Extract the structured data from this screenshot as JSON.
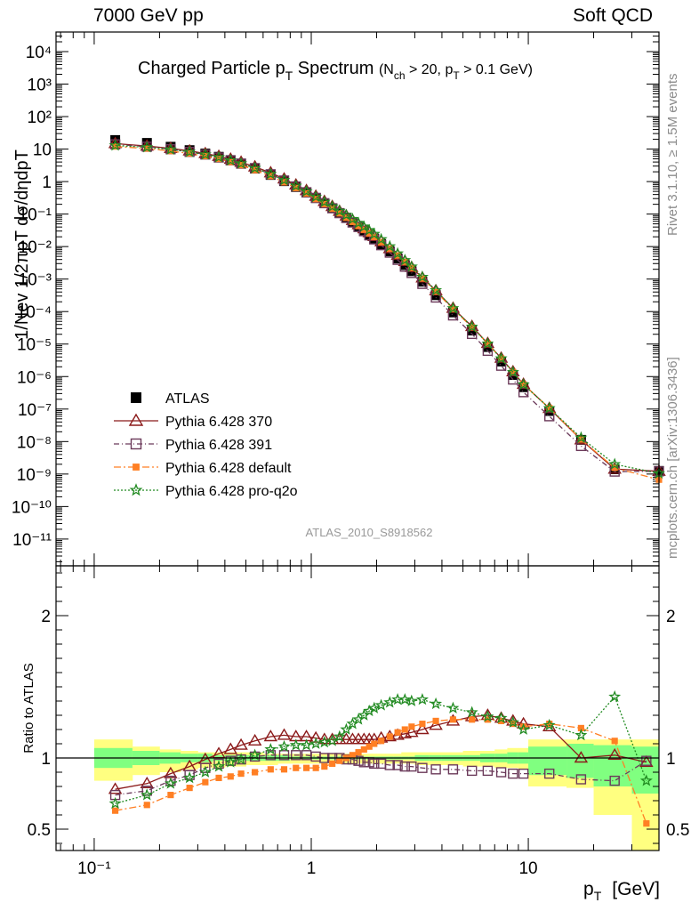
{
  "header": {
    "left": "7000 GeV pp",
    "right": "Soft QCD"
  },
  "side_labels": {
    "rivet": "Rivet 3.1.10, ≥ 1.5M events",
    "mcplots": "mcplots.cern.ch [arXiv:1306.3436]"
  },
  "chart_data": [
    {
      "type": "scatter",
      "title": "Charged Particle pT Spectrum (Nch > 20, pT > 0.1 GeV)",
      "title_main": "Charged Particle p",
      "title_sub": "T",
      "title_after": " Spectrum",
      "title_cond": "(N",
      "title_cond_sub": "ch",
      "title_cond_mid": " > 20, p",
      "title_cond_sub2": "T",
      "title_cond_end": " > 0.1 GeV)",
      "analysis_label": "ATLAS_2010_S8918562",
      "ylabel": "1/Nev 1/2πpT dσ/dηdpT",
      "xscale": "log",
      "yscale": "log",
      "xlim": [
        0.0667,
        40
      ],
      "ylim": [
        1.5e-12,
        40000.0
      ],
      "y_tick_labels": [
        "10⁻¹¹",
        "10⁻¹⁰",
        "10⁻⁹",
        "10⁻⁸",
        "10⁻⁷",
        "10⁻⁶",
        "10⁻⁵",
        "10⁻⁴",
        "10⁻³",
        "10⁻²",
        "10⁻¹",
        "1",
        "10",
        "10²",
        "10³",
        "10⁴"
      ],
      "legend": {
        "position": "lower-left",
        "entries": [
          "ATLAS",
          "Pythia 6.428 370",
          "Pythia 6.428 391",
          "Pythia 6.428 default",
          "Pythia 6.428 pro-q2o"
        ]
      },
      "x": [
        0.125,
        0.175,
        0.225,
        0.275,
        0.325,
        0.375,
        0.425,
        0.475,
        0.55,
        0.65,
        0.75,
        0.85,
        0.95,
        1.05,
        1.15,
        1.25,
        1.35,
        1.45,
        1.55,
        1.65,
        1.75,
        1.85,
        1.95,
        2.1,
        2.3,
        2.5,
        2.7,
        2.9,
        3.25,
        3.75,
        4.5,
        5.5,
        6.5,
        7.5,
        8.5,
        9.5,
        12.5,
        17.5,
        25,
        40
      ],
      "series": [
        {
          "name": "ATLAS",
          "values": [
            19,
            15.5,
            11.8,
            9.3,
            7.3,
            5.8,
            4.6,
            3.6,
            2.5,
            1.6,
            1.03,
            0.68,
            0.46,
            0.31,
            0.215,
            0.152,
            0.107,
            0.077,
            0.056,
            0.041,
            0.031,
            0.0232,
            0.0175,
            0.0118,
            0.0071,
            0.0043,
            0.0027,
            0.00175,
            0.00083,
            0.00032,
            9.4e-05,
            2.6e-05,
            8.1e-06,
            2.9e-06,
            1.12e-06,
            4.7e-07,
            8.7e-08,
            1.13e-08,
            1.4e-09,
            1.25e-09
          ]
        },
        {
          "name": "Pythia 6.428 370",
          "values": [
            14.8,
            12.4,
            10.5,
            8.8,
            7.3,
            6.0,
            4.9,
            3.95,
            2.85,
            1.87,
            1.21,
            0.79,
            0.53,
            0.355,
            0.245,
            0.172,
            0.122,
            0.088,
            0.064,
            0.047,
            0.0355,
            0.027,
            0.0205,
            0.0141,
            0.0087,
            0.0054,
            0.0035,
            0.00228,
            0.00109,
            0.00044,
            0.000127,
            3.5e-05,
            1.05e-05,
            3.7e-06,
            1.41e-06,
            5.8e-07,
            1.05e-07,
            1.14e-08,
            1.42e-09,
            1.22e-09
          ]
        },
        {
          "name": "Pythia 6.428 391",
          "values": [
            14.0,
            11.8,
            9.9,
            8.2,
            6.8,
            5.5,
            4.5,
            3.55,
            2.6,
            1.68,
            1.08,
            0.71,
            0.47,
            0.315,
            0.216,
            0.151,
            0.107,
            0.076,
            0.055,
            0.04,
            0.0297,
            0.0221,
            0.0166,
            0.011,
            0.0065,
            0.0039,
            0.0024,
            0.00154,
            0.00071,
            0.00027,
            7.6e-05,
            2.05e-05,
            6.2e-06,
            2.15e-06,
            8.1e-07,
            3.3e-07,
            6e-08,
            7.3e-09,
            1.19e-09,
            1.21e-09
          ]
        },
        {
          "name": "Pythia 6.428 default",
          "values": [
            12.0,
            10.4,
            8.7,
            7.3,
            6.1,
            5.0,
            4.0,
            3.2,
            2.25,
            1.47,
            0.95,
            0.63,
            0.43,
            0.29,
            0.203,
            0.146,
            0.105,
            0.077,
            0.057,
            0.043,
            0.033,
            0.0255,
            0.0197,
            0.0136,
            0.0085,
            0.0053,
            0.0034,
            0.0022,
            0.00104,
            0.00041,
            0.000119,
            3.3e-05,
            1.03e-05,
            3.6e-06,
            1.38e-06,
            5.7e-07,
            1.07e-07,
            1.15e-08,
            1.55e-09,
            6.7e-10
          ]
        },
        {
          "name": "Pythia 6.428 pro-q2o",
          "values": [
            12.9,
            11.4,
            9.7,
            8.2,
            6.8,
            5.6,
            4.5,
            3.6,
            2.6,
            1.71,
            1.11,
            0.74,
            0.5,
            0.34,
            0.237,
            0.171,
            0.125,
            0.093,
            0.07,
            0.053,
            0.041,
            0.0318,
            0.0244,
            0.0167,
            0.0101,
            0.0061,
            0.0038,
            0.0024,
            0.00116,
            0.00045,
            0.000126,
            3.4e-05,
            1.03e-05,
            3.6e-06,
            1.37e-06,
            5.7e-07,
            1.06e-07,
            1.31e-08,
            2e-09,
            1.05e-09
          ]
        }
      ]
    },
    {
      "type": "scatter",
      "ylabel": "Ratio to ATLAS",
      "xlabel": "pT [GeV]",
      "xlabel_main": "p",
      "xlabel_sub": "T",
      "xlabel_unit": "[GeV]",
      "xscale": "log",
      "xlim": [
        0.0667,
        40
      ],
      "ylim": [
        0.35,
        2.35
      ],
      "y_ticks": [
        0.5,
        1,
        2
      ],
      "y_tick_labels": [
        "0.5",
        "1",
        "2"
      ],
      "x_tick_labels": [
        "10⁻¹",
        "1",
        "10"
      ],
      "bands": {
        "x_edges": [
          0.1,
          0.15,
          0.2,
          0.25,
          0.3,
          0.35,
          0.4,
          0.45,
          0.5,
          0.6,
          0.7,
          0.8,
          0.9,
          1.0,
          1.1,
          1.2,
          1.3,
          1.4,
          1.5,
          1.6,
          1.7,
          1.8,
          1.9,
          2.0,
          2.2,
          2.4,
          2.6,
          2.8,
          3.0,
          3.5,
          4.0,
          5.0,
          6.0,
          7.0,
          8.0,
          9.0,
          10.0,
          15.0,
          20.0,
          30.0,
          40.0
        ],
        "outer_lo": [
          0.84,
          0.88,
          0.9,
          0.92,
          0.93,
          0.93,
          0.94,
          0.94,
          0.95,
          0.95,
          0.96,
          0.96,
          0.96,
          0.96,
          0.96,
          0.96,
          0.96,
          0.96,
          0.96,
          0.96,
          0.96,
          0.96,
          0.96,
          0.96,
          0.96,
          0.96,
          0.96,
          0.96,
          0.95,
          0.95,
          0.95,
          0.94,
          0.94,
          0.93,
          0.93,
          0.92,
          0.8,
          0.79,
          0.6,
          0.3
        ],
        "outer_hi": [
          1.13,
          1.08,
          1.06,
          1.05,
          1.04,
          1.04,
          1.04,
          1.04,
          1.04,
          1.03,
          1.03,
          1.03,
          1.03,
          1.03,
          1.03,
          1.03,
          1.03,
          1.03,
          1.03,
          1.03,
          1.03,
          1.03,
          1.03,
          1.03,
          1.03,
          1.03,
          1.04,
          1.04,
          1.04,
          1.04,
          1.04,
          1.05,
          1.05,
          1.06,
          1.07,
          1.07,
          1.13,
          1.13,
          1.13,
          1.13
        ],
        "inner_lo": [
          0.93,
          0.95,
          0.96,
          0.97,
          0.97,
          0.98,
          0.98,
          0.98,
          0.98,
          0.98,
          0.98,
          0.99,
          0.99,
          0.99,
          0.99,
          0.99,
          0.99,
          0.99,
          0.99,
          0.99,
          0.99,
          0.99,
          0.99,
          0.99,
          0.99,
          0.99,
          0.99,
          0.99,
          0.98,
          0.98,
          0.98,
          0.98,
          0.97,
          0.97,
          0.96,
          0.96,
          0.88,
          0.86,
          0.8,
          0.75
        ],
        "inner_hi": [
          1.07,
          1.05,
          1.04,
          1.03,
          1.03,
          1.02,
          1.02,
          1.02,
          1.02,
          1.02,
          1.02,
          1.01,
          1.01,
          1.01,
          1.01,
          1.01,
          1.01,
          1.01,
          1.01,
          1.01,
          1.01,
          1.01,
          1.01,
          1.01,
          1.01,
          1.01,
          1.01,
          1.01,
          1.02,
          1.02,
          1.02,
          1.02,
          1.03,
          1.03,
          1.04,
          1.04,
          1.08,
          1.1,
          1.09,
          1.08
        ]
      },
      "x": [
        0.125,
        0.175,
        0.225,
        0.275,
        0.325,
        0.375,
        0.425,
        0.475,
        0.55,
        0.65,
        0.75,
        0.85,
        0.95,
        1.05,
        1.15,
        1.25,
        1.35,
        1.45,
        1.55,
        1.65,
        1.75,
        1.85,
        1.95,
        2.1,
        2.3,
        2.5,
        2.7,
        2.9,
        3.25,
        3.75,
        4.5,
        5.5,
        6.5,
        7.5,
        8.5,
        9.5,
        12.5,
        17.5,
        25,
        35
      ],
      "series": [
        {
          "name": "Pythia 6.428 370",
          "values": [
            0.78,
            0.82,
            0.89,
            0.94,
            0.99,
            1.03,
            1.06,
            1.09,
            1.12,
            1.15,
            1.16,
            1.15,
            1.15,
            1.14,
            1.13,
            1.13,
            1.13,
            1.13,
            1.13,
            1.13,
            1.13,
            1.13,
            1.13,
            1.14,
            1.15,
            1.16,
            1.17,
            1.18,
            1.2,
            1.23,
            1.26,
            1.29,
            1.3,
            1.28,
            1.26,
            1.24,
            1.22,
            1.0,
            1.02,
            0.97
          ]
        },
        {
          "name": "Pythia 6.428 391",
          "values": [
            0.74,
            0.77,
            0.84,
            0.88,
            0.93,
            0.96,
            0.98,
            0.99,
            1.01,
            1.02,
            1.02,
            1.02,
            1.02,
            1.01,
            1.0,
            1.0,
            1.0,
            0.99,
            0.99,
            0.98,
            0.97,
            0.97,
            0.96,
            0.96,
            0.95,
            0.95,
            0.94,
            0.94,
            0.93,
            0.92,
            0.92,
            0.91,
            0.91,
            0.9,
            0.89,
            0.89,
            0.89,
            0.85,
            0.84,
            0.98
          ]
        },
        {
          "name": "Pythia 6.428 default",
          "values": [
            0.63,
            0.67,
            0.74,
            0.79,
            0.83,
            0.86,
            0.87,
            0.89,
            0.9,
            0.92,
            0.92,
            0.93,
            0.93,
            0.93,
            0.94,
            0.96,
            0.98,
            1.0,
            1.02,
            1.04,
            1.06,
            1.08,
            1.1,
            1.12,
            1.15,
            1.18,
            1.2,
            1.22,
            1.24,
            1.26,
            1.27,
            1.27,
            1.27,
            1.26,
            1.24,
            1.22,
            1.24,
            1.21,
            1.12,
            0.54
          ]
        },
        {
          "name": "Pythia 6.428 pro-q2o",
          "values": [
            0.68,
            0.74,
            0.82,
            0.86,
            0.9,
            0.94,
            0.97,
            0.99,
            1.02,
            1.06,
            1.08,
            1.09,
            1.09,
            1.1,
            1.11,
            1.12,
            1.15,
            1.2,
            1.24,
            1.27,
            1.3,
            1.33,
            1.35,
            1.37,
            1.39,
            1.41,
            1.41,
            1.4,
            1.41,
            1.38,
            1.35,
            1.32,
            1.29,
            1.28,
            1.25,
            1.2,
            1.23,
            1.16,
            1.43,
            0.84
          ]
        }
      ]
    }
  ],
  "colors": {
    "data": "#000000",
    "p370": "#8b1a1a",
    "p391": "#6b3a5a",
    "default": "#ff7f24",
    "proq2o": "#228b22",
    "band_inner": "#80ff80",
    "band_outer": "#ffff80",
    "side_text": "#8c8c8c",
    "analysis_label": "#999999"
  }
}
